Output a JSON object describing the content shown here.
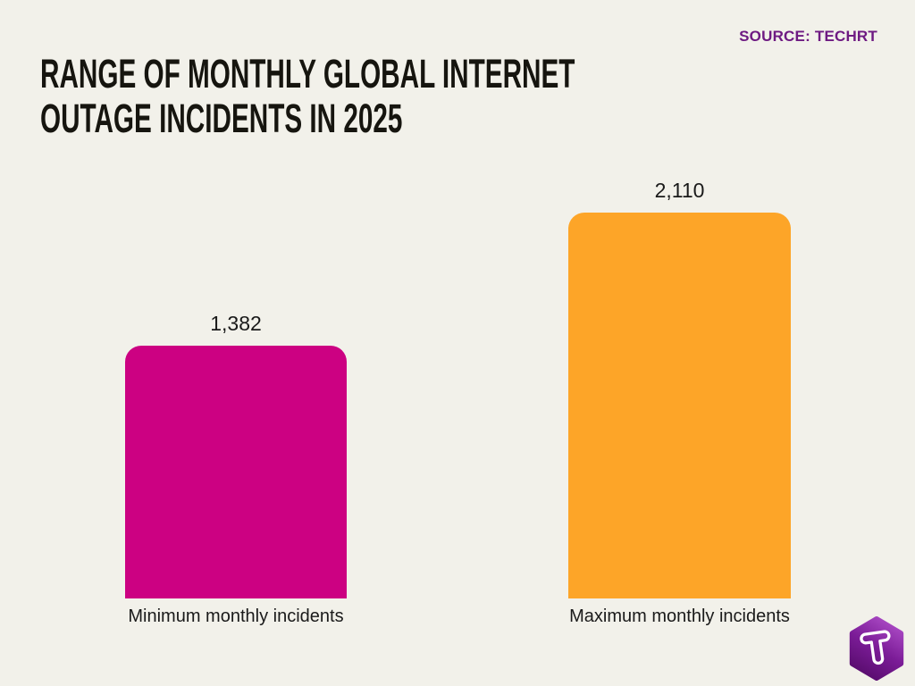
{
  "header": {
    "title_lines": [
      "RANGE OF MONTHLY GLOBAL INTERNET",
      "OUTAGE INCIDENTS IN 2025"
    ],
    "source_label": "SOURCE: TECHRT"
  },
  "chart_data": {
    "type": "bar",
    "title": "Range of monthly global internet outage incidents in 2025",
    "categories": [
      "Minimum monthly incidents",
      "Maximum monthly incidents"
    ],
    "values": [
      1382,
      2110
    ],
    "value_labels": [
      "1,382",
      "2,110"
    ],
    "bar_colors": [
      "#CC0182",
      "#FDA528"
    ],
    "xlabel": "",
    "ylabel": "",
    "ylim": [
      0,
      2110
    ],
    "grid": false,
    "legend": "none",
    "bar_corner_style": "rounded-top"
  },
  "branding": {
    "logo_name": "techrt-hexagon-t-logo",
    "logo_color_light": "#AB4AC5",
    "logo_color_dark": "#570C6C"
  },
  "colors": {
    "background": "#F2F1EA",
    "title_text": "#16150F",
    "source_text": "#6E1A82",
    "label_text": "#1A1A1A"
  }
}
